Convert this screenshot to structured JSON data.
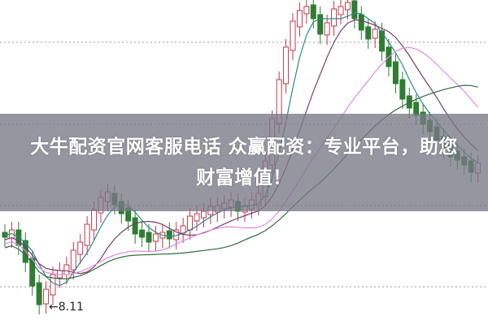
{
  "headline": {
    "line1": "大牛配资官网客服电话 众赢配资：专业平台，助您",
    "line2": "财富增值！"
  },
  "chart": {
    "low_marker_label": "8.11",
    "colors": {
      "up": "#c0384b",
      "down": "#2e7d32",
      "ma1": "#2a8a8a",
      "ma2": "#7a3f6e",
      "ma3": "#e08ae0",
      "ma4": "#2f6b3a",
      "grid": "#999999"
    }
  }
}
